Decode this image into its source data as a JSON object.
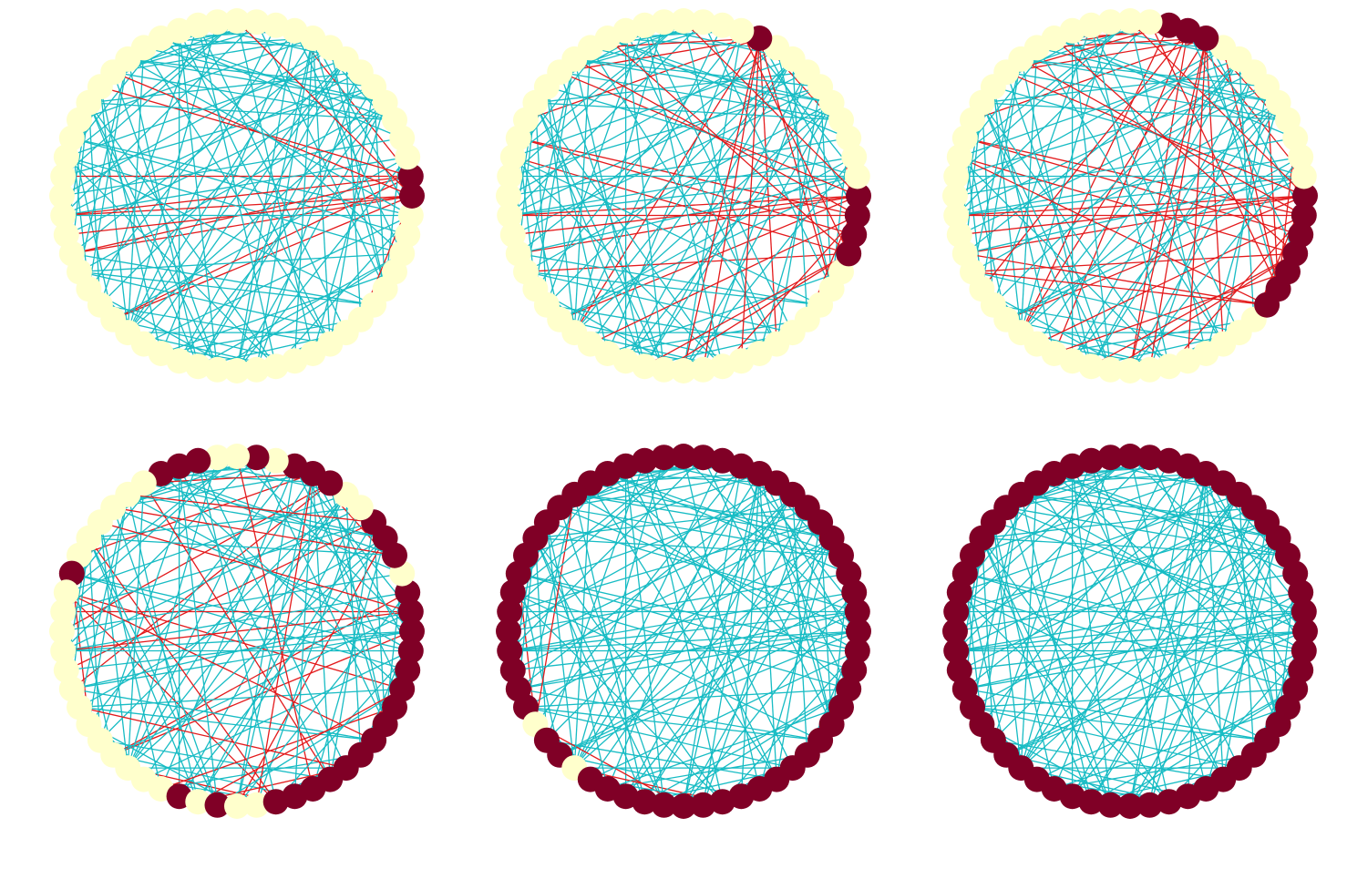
{
  "figure": {
    "description_type": "network-spreading-snapshots",
    "node_count": 56,
    "colors": {
      "inactive_node": "#ffffcc",
      "active_node": "#800026",
      "normal_edge": "#17bcc4",
      "spreading_edge": "#e31a1c"
    },
    "panels": [
      {
        "active": [
          28,
          29
        ]
      },
      {
        "active": [
          25,
          26,
          27,
          28,
          38
        ]
      },
      {
        "active": [
          22,
          23,
          24,
          25,
          26,
          27,
          28,
          38,
          39,
          40
        ]
      },
      {
        "active": [
          11,
          13,
          16,
          17,
          18,
          19,
          20,
          21,
          22,
          23,
          24,
          25,
          26,
          27,
          28,
          29,
          30,
          32,
          33,
          34,
          37,
          38,
          39,
          41,
          44,
          45,
          46,
          53
        ]
      },
      {
        "active": [
          0,
          1,
          2,
          3,
          4,
          6,
          7,
          9,
          10,
          11,
          12,
          13,
          14,
          15,
          16,
          17,
          18,
          19,
          20,
          21,
          22,
          23,
          24,
          25,
          26,
          27,
          28,
          29,
          30,
          31,
          32,
          33,
          34,
          35,
          36,
          37,
          38,
          39,
          40,
          41,
          42,
          43,
          44,
          45,
          46,
          47,
          48,
          49,
          50,
          51,
          52,
          53,
          54,
          55
        ]
      },
      {
        "active": "all"
      }
    ]
  }
}
